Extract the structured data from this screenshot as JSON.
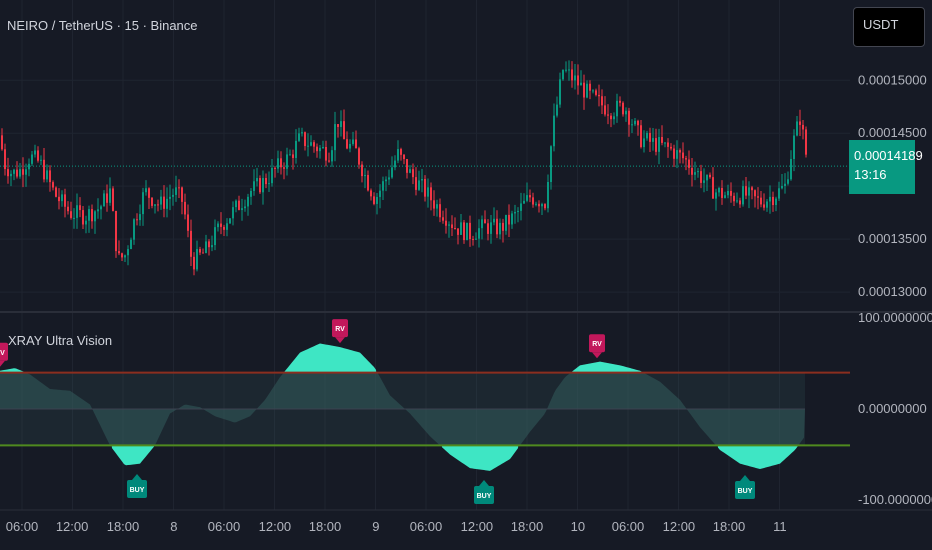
{
  "header": {
    "title": "NEIRO / TetherUS · 15 · Binance"
  },
  "currency_button": {
    "label": "USDT",
    "icon": "dropdown-icon"
  },
  "price_tag": {
    "price": "0.00014189",
    "countdown": "13:16"
  },
  "colors": {
    "up": "#089981",
    "down": "#f23645",
    "osc_fill": "#3ee6c4",
    "upper_line": "#8b2e1f",
    "lower_line": "#4f8a1f",
    "rv_label": "#c2185b",
    "buy_label": "#00897b"
  },
  "chart_data": [
    {
      "type": "candlestick",
      "title": "NEIRO / TetherUS · 15 · Binance",
      "ylim": [
        0.0001285,
        0.0001555
      ],
      "y_ticks": [
        "0.00015000",
        "0.00014500",
        "0.00013500",
        "0.00013000"
      ],
      "y_tick_values": [
        0.00015,
        0.000145,
        0.000135,
        0.00013
      ],
      "last_price": 0.00014189,
      "anchors": [
        [
          0,
          0.0001448
        ],
        [
          4,
          0.0001422
        ],
        [
          12,
          0.0001412
        ],
        [
          20,
          0.0001415
        ],
        [
          30,
          0.0001428
        ],
        [
          40,
          0.0001422
        ],
        [
          55,
          0.0001392
        ],
        [
          70,
          0.0001375
        ],
        [
          85,
          0.0001372
        ],
        [
          100,
          0.000138
        ],
        [
          110,
          0.0001395
        ],
        [
          118,
          0.000133
        ],
        [
          125,
          0.0001335
        ],
        [
          135,
          0.000137
        ],
        [
          145,
          0.0001395
        ],
        [
          160,
          0.0001382
        ],
        [
          175,
          0.0001395
        ],
        [
          183,
          0.0001385
        ],
        [
          192,
          0.0001328
        ],
        [
          205,
          0.0001338
        ],
        [
          220,
          0.0001362
        ],
        [
          235,
          0.0001378
        ],
        [
          250,
          0.0001395
        ],
        [
          265,
          0.0001405
        ],
        [
          280,
          0.000142
        ],
        [
          290,
          0.0001428
        ],
        [
          300,
          0.0001445
        ],
        [
          310,
          0.000144
        ],
        [
          320,
          0.0001435
        ],
        [
          330,
          0.0001432
        ],
        [
          337,
          0.0001465
        ],
        [
          345,
          0.000144
        ],
        [
          355,
          0.0001435
        ],
        [
          365,
          0.000141
        ],
        [
          375,
          0.0001388
        ],
        [
          385,
          0.0001405
        ],
        [
          398,
          0.000143
        ],
        [
          410,
          0.0001412
        ],
        [
          425,
          0.0001395
        ],
        [
          440,
          0.0001378
        ],
        [
          455,
          0.0001362
        ],
        [
          470,
          0.0001355
        ],
        [
          485,
          0.0001362
        ],
        [
          500,
          0.000136
        ],
        [
          515,
          0.0001372
        ],
        [
          530,
          0.000139
        ],
        [
          545,
          0.0001385
        ],
        [
          553,
          0.0001455
        ],
        [
          563,
          0.000151
        ],
        [
          575,
          0.00015
        ],
        [
          590,
          0.0001485
        ],
        [
          600,
          0.0001478
        ],
        [
          610,
          0.0001472
        ],
        [
          625,
          0.0001475
        ],
        [
          640,
          0.0001445
        ],
        [
          655,
          0.000144
        ],
        [
          670,
          0.0001435
        ],
        [
          685,
          0.0001425
        ],
        [
          700,
          0.000141
        ],
        [
          715,
          0.0001395
        ],
        [
          730,
          0.000139
        ],
        [
          745,
          0.0001392
        ],
        [
          760,
          0.0001385
        ],
        [
          775,
          0.0001392
        ],
        [
          785,
          0.00014
        ],
        [
          793,
          0.000144
        ],
        [
          800,
          0.0001465
        ],
        [
          808,
          0.0001419
        ]
      ]
    },
    {
      "type": "area",
      "title": "XRAY Ultra Vision",
      "ylim": [
        -100,
        100
      ],
      "y_ticks": [
        "100.00000000",
        "0.00000000",
        "-100.00000000"
      ],
      "y_tick_values": [
        100,
        0,
        -100
      ],
      "upper_level": 40,
      "lower_level": -40,
      "series": [
        {
          "values": [
            [
              0,
              42
            ],
            [
              15,
              45
            ],
            [
              30,
              38
            ],
            [
              50,
              22
            ],
            [
              70,
              20
            ],
            [
              90,
              5
            ],
            [
              110,
              -40
            ],
            [
              125,
              -62
            ],
            [
              140,
              -60
            ],
            [
              155,
              -40
            ],
            [
              170,
              -5
            ],
            [
              185,
              5
            ],
            [
              200,
              2
            ],
            [
              215,
              -8
            ],
            [
              235,
              -15
            ],
            [
              250,
              -8
            ],
            [
              265,
              10
            ],
            [
              280,
              35
            ],
            [
              300,
              62
            ],
            [
              320,
              72
            ],
            [
              340,
              68
            ],
            [
              360,
              62
            ],
            [
              375,
              45
            ],
            [
              390,
              15
            ],
            [
              410,
              -5
            ],
            [
              430,
              -30
            ],
            [
              450,
              -50
            ],
            [
              470,
              -65
            ],
            [
              490,
              -68
            ],
            [
              510,
              -55
            ],
            [
              530,
              -25
            ],
            [
              545,
              -5
            ],
            [
              555,
              20
            ],
            [
              565,
              35
            ],
            [
              580,
              48
            ],
            [
              600,
              52
            ],
            [
              620,
              48
            ],
            [
              640,
              42
            ],
            [
              660,
              30
            ],
            [
              680,
              10
            ],
            [
              700,
              -20
            ],
            [
              720,
              -45
            ],
            [
              740,
              -60
            ],
            [
              760,
              -66
            ],
            [
              780,
              -60
            ],
            [
              795,
              -45
            ],
            [
              805,
              -30
            ]
          ]
        }
      ],
      "signals": [
        {
          "x": 0,
          "label": "RV",
          "kind": "sell"
        },
        {
          "x": 340,
          "label": "RV",
          "kind": "sell"
        },
        {
          "x": 597,
          "label": "RV",
          "kind": "sell"
        },
        {
          "x": 137,
          "label": "BUY",
          "kind": "buy"
        },
        {
          "x": 484,
          "label": "BUY",
          "kind": "buy"
        },
        {
          "x": 745,
          "label": "BUY",
          "kind": "buy"
        }
      ]
    }
  ],
  "time_axis": {
    "labels": [
      "06:00",
      "12:00",
      "18:00",
      "8",
      "06:00",
      "12:00",
      "18:00",
      "9",
      "06:00",
      "12:00",
      "18:00",
      "10",
      "06:00",
      "12:00",
      "18:00",
      "11"
    ],
    "x": [
      0.0,
      0.062,
      0.125,
      0.188,
      0.25,
      0.313,
      0.375,
      0.438,
      0.5,
      0.563,
      0.625,
      0.688,
      0.75,
      0.813,
      0.875,
      0.938
    ]
  }
}
